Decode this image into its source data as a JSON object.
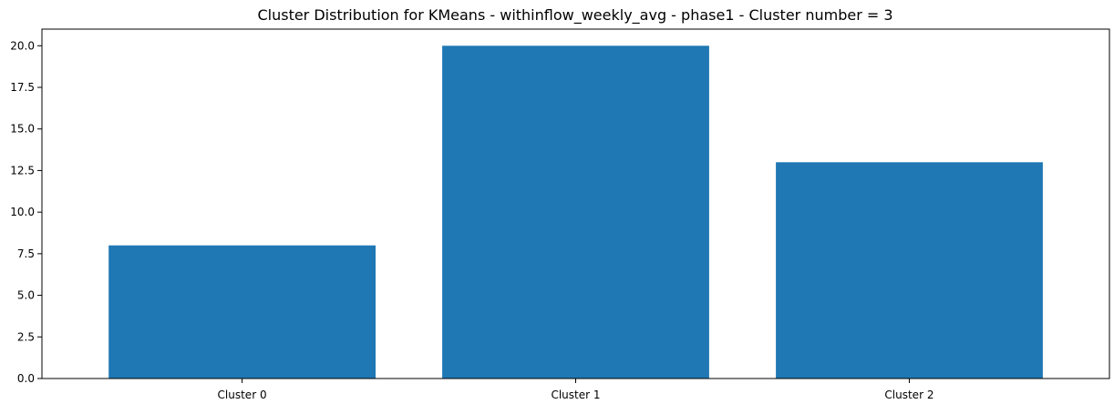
{
  "chart_data": {
    "type": "bar",
    "title": "Cluster Distribution for KMeans - withinflow_weekly_avg - phase1 - Cluster number = 3",
    "xlabel": "",
    "ylabel": "",
    "categories": [
      "Cluster 0",
      "Cluster 1",
      "Cluster 2"
    ],
    "values": [
      8,
      20,
      13
    ],
    "ylim": [
      0,
      21
    ],
    "yticks": [
      0.0,
      2.5,
      5.0,
      7.5,
      10.0,
      12.5,
      15.0,
      17.5,
      20.0
    ],
    "ytick_labels": [
      "0.0",
      "2.5",
      "5.0",
      "7.5",
      "10.0",
      "12.5",
      "15.0",
      "17.5",
      "20.0"
    ],
    "grid": false,
    "bar_color": "#1f77b4"
  }
}
